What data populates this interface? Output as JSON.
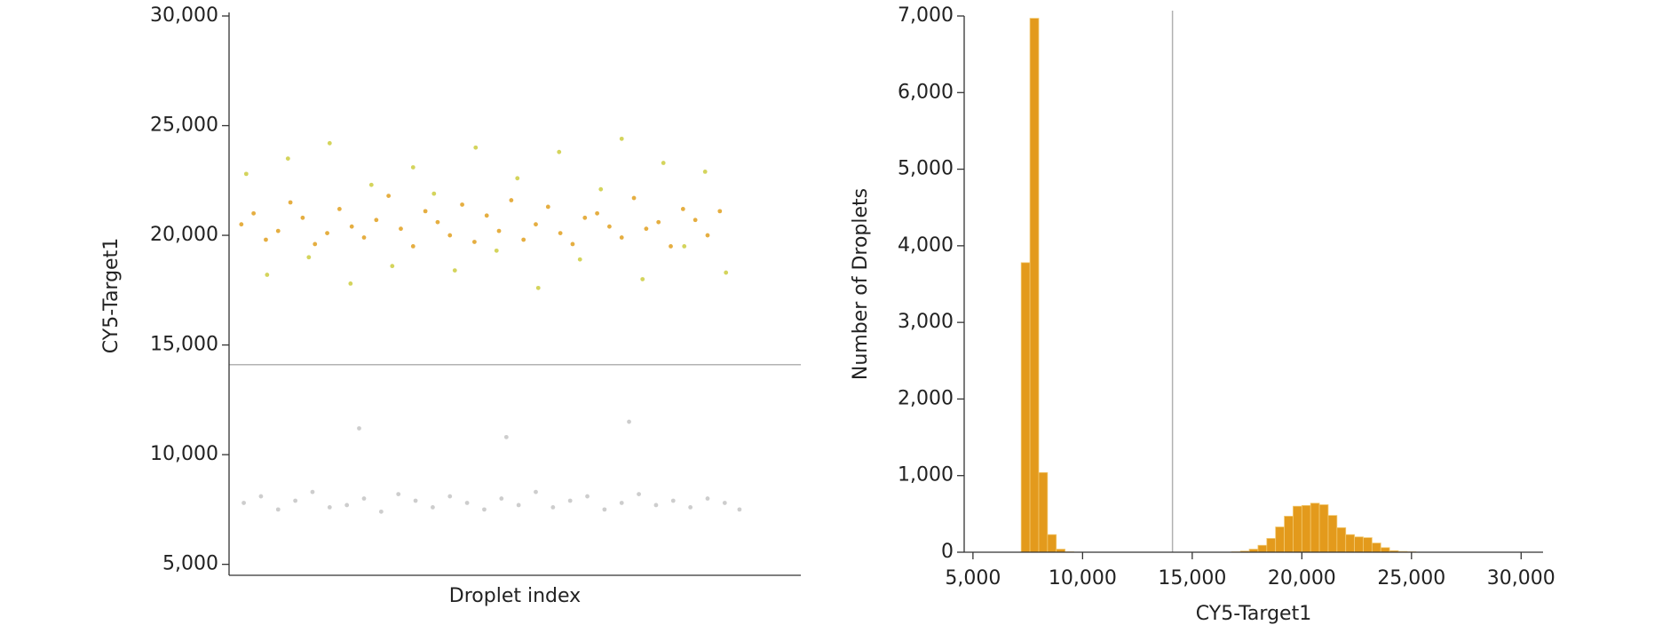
{
  "chart_data": [
    {
      "type": "scatter",
      "x_label": "Droplet index",
      "y_label": "CY5-Target1",
      "xlim": [
        -300,
        23000
      ],
      "ylim": [
        4500,
        30000
      ],
      "yticks": [
        {
          "value": 5000,
          "label": "5,000"
        },
        {
          "value": 10000,
          "label": "10,000"
        },
        {
          "value": 15000,
          "label": "15,000"
        },
        {
          "value": 20000,
          "label": "20,000"
        },
        {
          "value": 25000,
          "label": "25,000"
        },
        {
          "value": 30000,
          "label": "30,000"
        }
      ],
      "threshold": 14100,
      "threshold_color": "#9a9a9a",
      "series": [
        {
          "color": "#c4c4c4",
          "x": [
            300,
            1000,
            1700,
            2400,
            3100,
            3800,
            4500,
            5200,
            5900,
            6600,
            7300,
            8000,
            8700,
            9400,
            10100,
            10800,
            11500,
            12200,
            12900,
            13600,
            14300,
            15000,
            15700,
            16400,
            17100,
            17800,
            18500,
            19200,
            19900,
            20500,
            5000,
            11000,
            16000
          ],
          "values": [
            7800,
            8100,
            7500,
            7900,
            8300,
            7600,
            7700,
            8000,
            7400,
            8200,
            7900,
            7600,
            8100,
            7800,
            7500,
            8000,
            7700,
            8300,
            7600,
            7900,
            8100,
            7500,
            7800,
            8200,
            7700,
            7900,
            7600,
            8000,
            7800,
            7500,
            11200,
            10800,
            11500
          ]
        },
        {
          "color": "#e0a020",
          "x": [
            200,
            700,
            1200,
            1700,
            2200,
            2700,
            3200,
            3700,
            4200,
            4700,
            5200,
            5700,
            6200,
            6700,
            7200,
            7700,
            8200,
            8700,
            9200,
            9700,
            10200,
            10700,
            11200,
            11700,
            12200,
            12700,
            13200,
            13700,
            14200,
            14700,
            15200,
            15700,
            16200,
            16700,
            17200,
            17700,
            18200,
            18700,
            19200,
            19700
          ],
          "values": [
            20500,
            21000,
            19800,
            20200,
            21500,
            20800,
            19600,
            20100,
            21200,
            20400,
            19900,
            20700,
            21800,
            20300,
            19500,
            21100,
            20600,
            20000,
            21400,
            19700,
            20900,
            20200,
            21600,
            19800,
            20500,
            21300,
            20100,
            19600,
            20800,
            21000,
            20400,
            19900,
            21700,
            20300,
            20600,
            19500,
            21200,
            20700,
            20000,
            21100
          ]
        },
        {
          "color": "#cccc40",
          "x": [
            400,
            1250,
            2100,
            2950,
            3800,
            4650,
            5500,
            6350,
            7200,
            8050,
            8900,
            9750,
            10600,
            11450,
            12300,
            13150,
            14000,
            14850,
            15700,
            16550,
            17400,
            18250,
            19100,
            19950
          ],
          "values": [
            22800,
            18200,
            23500,
            19000,
            24200,
            17800,
            22300,
            18600,
            23100,
            21900,
            18400,
            24000,
            19300,
            22600,
            17600,
            23800,
            18900,
            22100,
            24400,
            18000,
            23300,
            19500,
            22900,
            18300
          ]
        }
      ]
    },
    {
      "type": "histogram",
      "x_label": "CY5-Target1",
      "y_label": "Number of Droplets",
      "xlim": [
        4600,
        31000
      ],
      "ylim": [
        0,
        7000
      ],
      "xticks": [
        {
          "value": 5000,
          "label": "5,000"
        },
        {
          "value": 10000,
          "label": "10,000"
        },
        {
          "value": 15000,
          "label": "15,000"
        },
        {
          "value": 20000,
          "label": "20,000"
        },
        {
          "value": 25000,
          "label": "25,000"
        },
        {
          "value": 30000,
          "label": "30,000"
        }
      ],
      "yticks": [
        0,
        {
          "value": 1000,
          "label": "1,000"
        },
        {
          "value": 2000,
          "label": "2,000"
        },
        {
          "value": 3000,
          "label": "3,000"
        },
        {
          "value": 4000,
          "label": "4,000"
        },
        {
          "value": 5000,
          "label": "5,000"
        },
        {
          "value": 6000,
          "label": "6,000"
        },
        {
          "value": 7000,
          "label": "7,000"
        }
      ],
      "threshold": 14100,
      "threshold_color": "#b0b0b0",
      "color": "#e39a1c",
      "bins": [
        7200,
        7600,
        8000,
        8400,
        8800,
        9200,
        9600,
        10000,
        10400,
        10800,
        11200,
        11600,
        12000,
        12400,
        12800,
        13200,
        13600,
        14000,
        14400,
        14800,
        15200,
        15600,
        16000,
        16400,
        16800,
        17200,
        17600,
        18000,
        18400,
        18800,
        19200,
        19600,
        20000,
        20400,
        20800,
        21200,
        21600,
        22000,
        22400,
        22800,
        23200,
        23600,
        24000,
        24400,
        24800,
        25200
      ],
      "counts": [
        3780,
        6970,
        1040,
        230,
        40,
        5,
        0,
        0,
        0,
        0,
        0,
        0,
        0,
        0,
        0,
        0,
        0,
        0,
        0,
        0,
        0,
        0,
        0,
        0,
        5,
        15,
        40,
        90,
        180,
        330,
        470,
        600,
        610,
        640,
        620,
        480,
        320,
        230,
        200,
        190,
        120,
        60,
        20,
        10,
        5
      ]
    }
  ]
}
